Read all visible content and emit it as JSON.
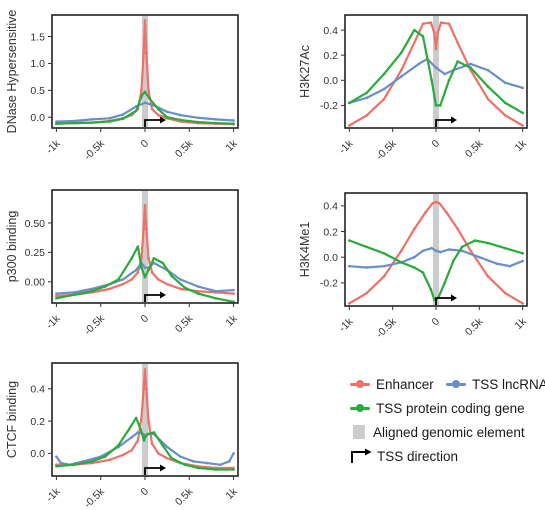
{
  "colors": {
    "enhancer": "#f07068",
    "lncrna": "#6a8fc8",
    "protein": "#2aaa3c",
    "element": "#cccccc",
    "arrow": "#000000"
  },
  "legend": {
    "enhancer": "Enhancer",
    "lncrna": "TSS lncRNA",
    "protein": "TSS protein coding gene",
    "element": "Aligned genomic element",
    "direction": "TSS direction"
  },
  "chart_data": [
    {
      "type": "line",
      "ylabel": "DNase Hypersensitive",
      "x_ticks": [
        -1000,
        -500,
        0,
        500,
        1000
      ],
      "x_tick_labels": [
        "-1k",
        "-0.5k",
        "0",
        "0.5k",
        "1k"
      ],
      "y_ticks": [
        0.0,
        0.5,
        1.0,
        1.5
      ],
      "y_tick_labels": [
        "0.0",
        "0.5",
        "1.0",
        "1.5"
      ],
      "xlim": [
        -1050,
        1050
      ],
      "ylim": [
        -0.2,
        1.9
      ],
      "grid": false,
      "series": [
        {
          "key": "enhancer",
          "x": [
            -1000,
            -800,
            -600,
            -400,
            -250,
            -150,
            -80,
            -40,
            -15,
            0,
            15,
            40,
            80,
            150,
            250,
            400,
            600,
            800,
            1000
          ],
          "y": [
            -0.12,
            -0.11,
            -0.1,
            -0.07,
            -0.02,
            0.04,
            0.15,
            0.5,
            1.2,
            1.8,
            1.2,
            0.5,
            0.15,
            0.04,
            -0.02,
            -0.08,
            -0.11,
            -0.12,
            -0.13
          ]
        },
        {
          "key": "lncrna",
          "x": [
            -1000,
            -800,
            -600,
            -400,
            -250,
            -100,
            0,
            100,
            250,
            400,
            600,
            800,
            1000
          ],
          "y": [
            -0.08,
            -0.07,
            -0.04,
            -0.02,
            0.05,
            0.2,
            0.27,
            0.22,
            0.1,
            0.04,
            -0.01,
            -0.04,
            -0.06
          ]
        },
        {
          "key": "protein",
          "x": [
            -1000,
            -800,
            -600,
            -400,
            -250,
            -100,
            -30,
            0,
            50,
            150,
            250,
            400,
            600,
            800,
            1000
          ],
          "y": [
            -0.12,
            -0.11,
            -0.1,
            -0.08,
            -0.03,
            0.12,
            0.42,
            0.47,
            0.35,
            0.15,
            0.0,
            -0.05,
            -0.09,
            -0.11,
            -0.12
          ]
        }
      ]
    },
    {
      "type": "line",
      "ylabel": "H3K27Ac",
      "x_ticks": [
        -1000,
        -500,
        0,
        500,
        1000
      ],
      "x_tick_labels": [
        "-1k",
        "-0.5k",
        "0",
        "0.5k",
        "1k"
      ],
      "y_ticks": [
        -0.2,
        0.0,
        0.2,
        0.4
      ],
      "y_tick_labels": [
        "-0.2",
        "0.0",
        "0.2",
        "0.4"
      ],
      "xlim": [
        -1050,
        1050
      ],
      "ylim": [
        -0.38,
        0.52
      ],
      "grid": false,
      "series": [
        {
          "key": "enhancer",
          "x": [
            -1000,
            -800,
            -600,
            -400,
            -250,
            -150,
            -60,
            -20,
            0,
            20,
            60,
            150,
            250,
            400,
            600,
            800,
            1000
          ],
          "y": [
            -0.36,
            -0.28,
            -0.15,
            0.08,
            0.3,
            0.45,
            0.46,
            0.38,
            0.25,
            0.38,
            0.46,
            0.45,
            0.3,
            0.08,
            -0.15,
            -0.28,
            -0.36
          ]
        },
        {
          "key": "lncrna",
          "x": [
            -1000,
            -800,
            -600,
            -400,
            -200,
            -100,
            0,
            100,
            200,
            400,
            600,
            800,
            1000
          ],
          "y": [
            -0.18,
            -0.14,
            -0.07,
            0.03,
            0.13,
            0.17,
            0.1,
            0.05,
            0.08,
            0.13,
            0.08,
            -0.02,
            -0.06
          ]
        },
        {
          "key": "protein",
          "x": [
            -1000,
            -800,
            -600,
            -400,
            -250,
            -150,
            -50,
            0,
            50,
            150,
            250,
            400,
            600,
            800,
            1000
          ],
          "y": [
            -0.18,
            -0.1,
            0.05,
            0.22,
            0.4,
            0.35,
            0.0,
            -0.2,
            -0.2,
            0.0,
            0.15,
            0.1,
            -0.05,
            -0.18,
            -0.26
          ]
        }
      ]
    },
    {
      "type": "line",
      "ylabel": "p300 binding",
      "x_ticks": [
        -1000,
        -500,
        0,
        500,
        1000
      ],
      "x_tick_labels": [
        "-1k",
        "-0.5k",
        "0",
        "0.5k",
        "1k"
      ],
      "y_ticks": [
        0.0,
        0.25,
        0.5
      ],
      "y_tick_labels": [
        "0.00",
        "0.25",
        "0.50"
      ],
      "xlim": [
        -1050,
        1050
      ],
      "ylim": [
        -0.18,
        0.78
      ],
      "grid": false,
      "series": [
        {
          "key": "enhancer",
          "x": [
            -1000,
            -800,
            -600,
            -400,
            -250,
            -150,
            -80,
            -40,
            -15,
            0,
            15,
            40,
            80,
            150,
            250,
            400,
            600,
            800,
            1000
          ],
          "y": [
            -0.12,
            -0.11,
            -0.09,
            -0.06,
            -0.02,
            0.02,
            0.08,
            0.2,
            0.45,
            0.65,
            0.45,
            0.2,
            0.08,
            0.02,
            -0.02,
            -0.06,
            -0.08,
            -0.09,
            -0.1
          ]
        },
        {
          "key": "lncrna",
          "x": [
            -1000,
            -800,
            -600,
            -400,
            -250,
            -100,
            -40,
            0,
            40,
            100,
            250,
            400,
            600,
            800,
            1000
          ],
          "y": [
            -0.1,
            -0.09,
            -0.06,
            -0.02,
            0.02,
            0.1,
            0.16,
            0.12,
            0.12,
            0.16,
            0.1,
            0.02,
            -0.04,
            -0.08,
            -0.07
          ]
        },
        {
          "key": "protein",
          "x": [
            -1000,
            -800,
            -600,
            -450,
            -300,
            -150,
            -80,
            -40,
            0,
            40,
            100,
            200,
            300,
            450,
            600,
            800,
            1000
          ],
          "y": [
            -0.14,
            -0.11,
            -0.08,
            -0.04,
            0.02,
            0.2,
            0.3,
            0.12,
            0.04,
            0.1,
            0.2,
            0.16,
            0.05,
            -0.05,
            -0.1,
            -0.14,
            -0.17
          ]
        }
      ]
    },
    {
      "type": "line",
      "ylabel": "H3K4Me1",
      "x_ticks": [
        -1000,
        -500,
        0,
        500,
        1000
      ],
      "x_tick_labels": [
        "-1k",
        "-0.5k",
        "0",
        "0.5k",
        "1k"
      ],
      "y_ticks": [
        -0.2,
        0.0,
        0.2,
        0.4
      ],
      "y_tick_labels": [
        "-0.2",
        "0.0",
        "0.2",
        "0.4"
      ],
      "xlim": [
        -1050,
        1050
      ],
      "ylim": [
        -0.38,
        0.5
      ],
      "grid": false,
      "series": [
        {
          "key": "enhancer",
          "x": [
            -1000,
            -800,
            -600,
            -400,
            -250,
            -120,
            -40,
            0,
            40,
            120,
            250,
            400,
            600,
            800,
            1000
          ],
          "y": [
            -0.36,
            -0.28,
            -0.15,
            0.05,
            0.22,
            0.35,
            0.42,
            0.43,
            0.42,
            0.35,
            0.22,
            0.05,
            -0.15,
            -0.28,
            -0.36
          ]
        },
        {
          "key": "lncrna",
          "x": [
            -1000,
            -800,
            -600,
            -400,
            -250,
            -150,
            -50,
            0,
            50,
            150,
            300,
            500,
            700,
            850,
            1000
          ],
          "y": [
            -0.07,
            -0.08,
            -0.07,
            -0.04,
            0.0,
            0.05,
            0.07,
            0.05,
            0.04,
            0.06,
            0.05,
            0.0,
            -0.05,
            -0.07,
            -0.03
          ]
        },
        {
          "key": "protein",
          "x": [
            -1000,
            -800,
            -600,
            -400,
            -250,
            -150,
            -60,
            -20,
            0,
            30,
            100,
            200,
            300,
            450,
            600,
            800,
            1000
          ],
          "y": [
            0.13,
            0.08,
            0.03,
            -0.04,
            -0.08,
            -0.12,
            -0.25,
            -0.33,
            -0.33,
            -0.31,
            -0.2,
            -0.03,
            0.08,
            0.13,
            0.11,
            0.07,
            0.03
          ]
        }
      ]
    },
    {
      "type": "line",
      "ylabel": "CTCF binding",
      "x_ticks": [
        -1000,
        -500,
        0,
        500,
        1000
      ],
      "x_tick_labels": [
        "-1k",
        "-0.5k",
        "0",
        "0.5k",
        "1k"
      ],
      "y_ticks": [
        0.0,
        0.2,
        0.4
      ],
      "y_tick_labels": [
        "0.0",
        "0.2",
        "0.4"
      ],
      "xlim": [
        -1050,
        1050
      ],
      "ylim": [
        -0.14,
        0.56
      ],
      "grid": false,
      "series": [
        {
          "key": "enhancer",
          "x": [
            -1000,
            -800,
            -600,
            -400,
            -250,
            -150,
            -80,
            -40,
            -15,
            0,
            15,
            40,
            80,
            150,
            250,
            400,
            600,
            800,
            1000
          ],
          "y": [
            -0.07,
            -0.07,
            -0.06,
            -0.04,
            -0.01,
            0.02,
            0.08,
            0.22,
            0.4,
            0.52,
            0.4,
            0.2,
            0.06,
            0.0,
            -0.03,
            -0.06,
            -0.08,
            -0.09,
            -0.09
          ]
        },
        {
          "key": "lncrna",
          "x": [
            -1000,
            -950,
            -850,
            -700,
            -500,
            -300,
            -150,
            -80,
            -20,
            0,
            30,
            100,
            250,
            400,
            550,
            700,
            850,
            950,
            1000
          ],
          "y": [
            -0.02,
            -0.06,
            -0.07,
            -0.05,
            -0.02,
            0.04,
            0.1,
            0.13,
            0.12,
            0.11,
            0.12,
            0.12,
            0.04,
            -0.02,
            -0.05,
            -0.06,
            -0.07,
            -0.05,
            0.0
          ]
        },
        {
          "key": "protein",
          "x": [
            -1000,
            -800,
            -600,
            -450,
            -300,
            -180,
            -100,
            -50,
            -10,
            0,
            30,
            100,
            200,
            300,
            450,
            600,
            800,
            1000
          ],
          "y": [
            -0.08,
            -0.07,
            -0.05,
            -0.02,
            0.05,
            0.15,
            0.22,
            0.15,
            0.08,
            0.1,
            0.12,
            0.13,
            0.05,
            -0.03,
            -0.07,
            -0.09,
            -0.1,
            -0.1
          ]
        }
      ]
    }
  ]
}
